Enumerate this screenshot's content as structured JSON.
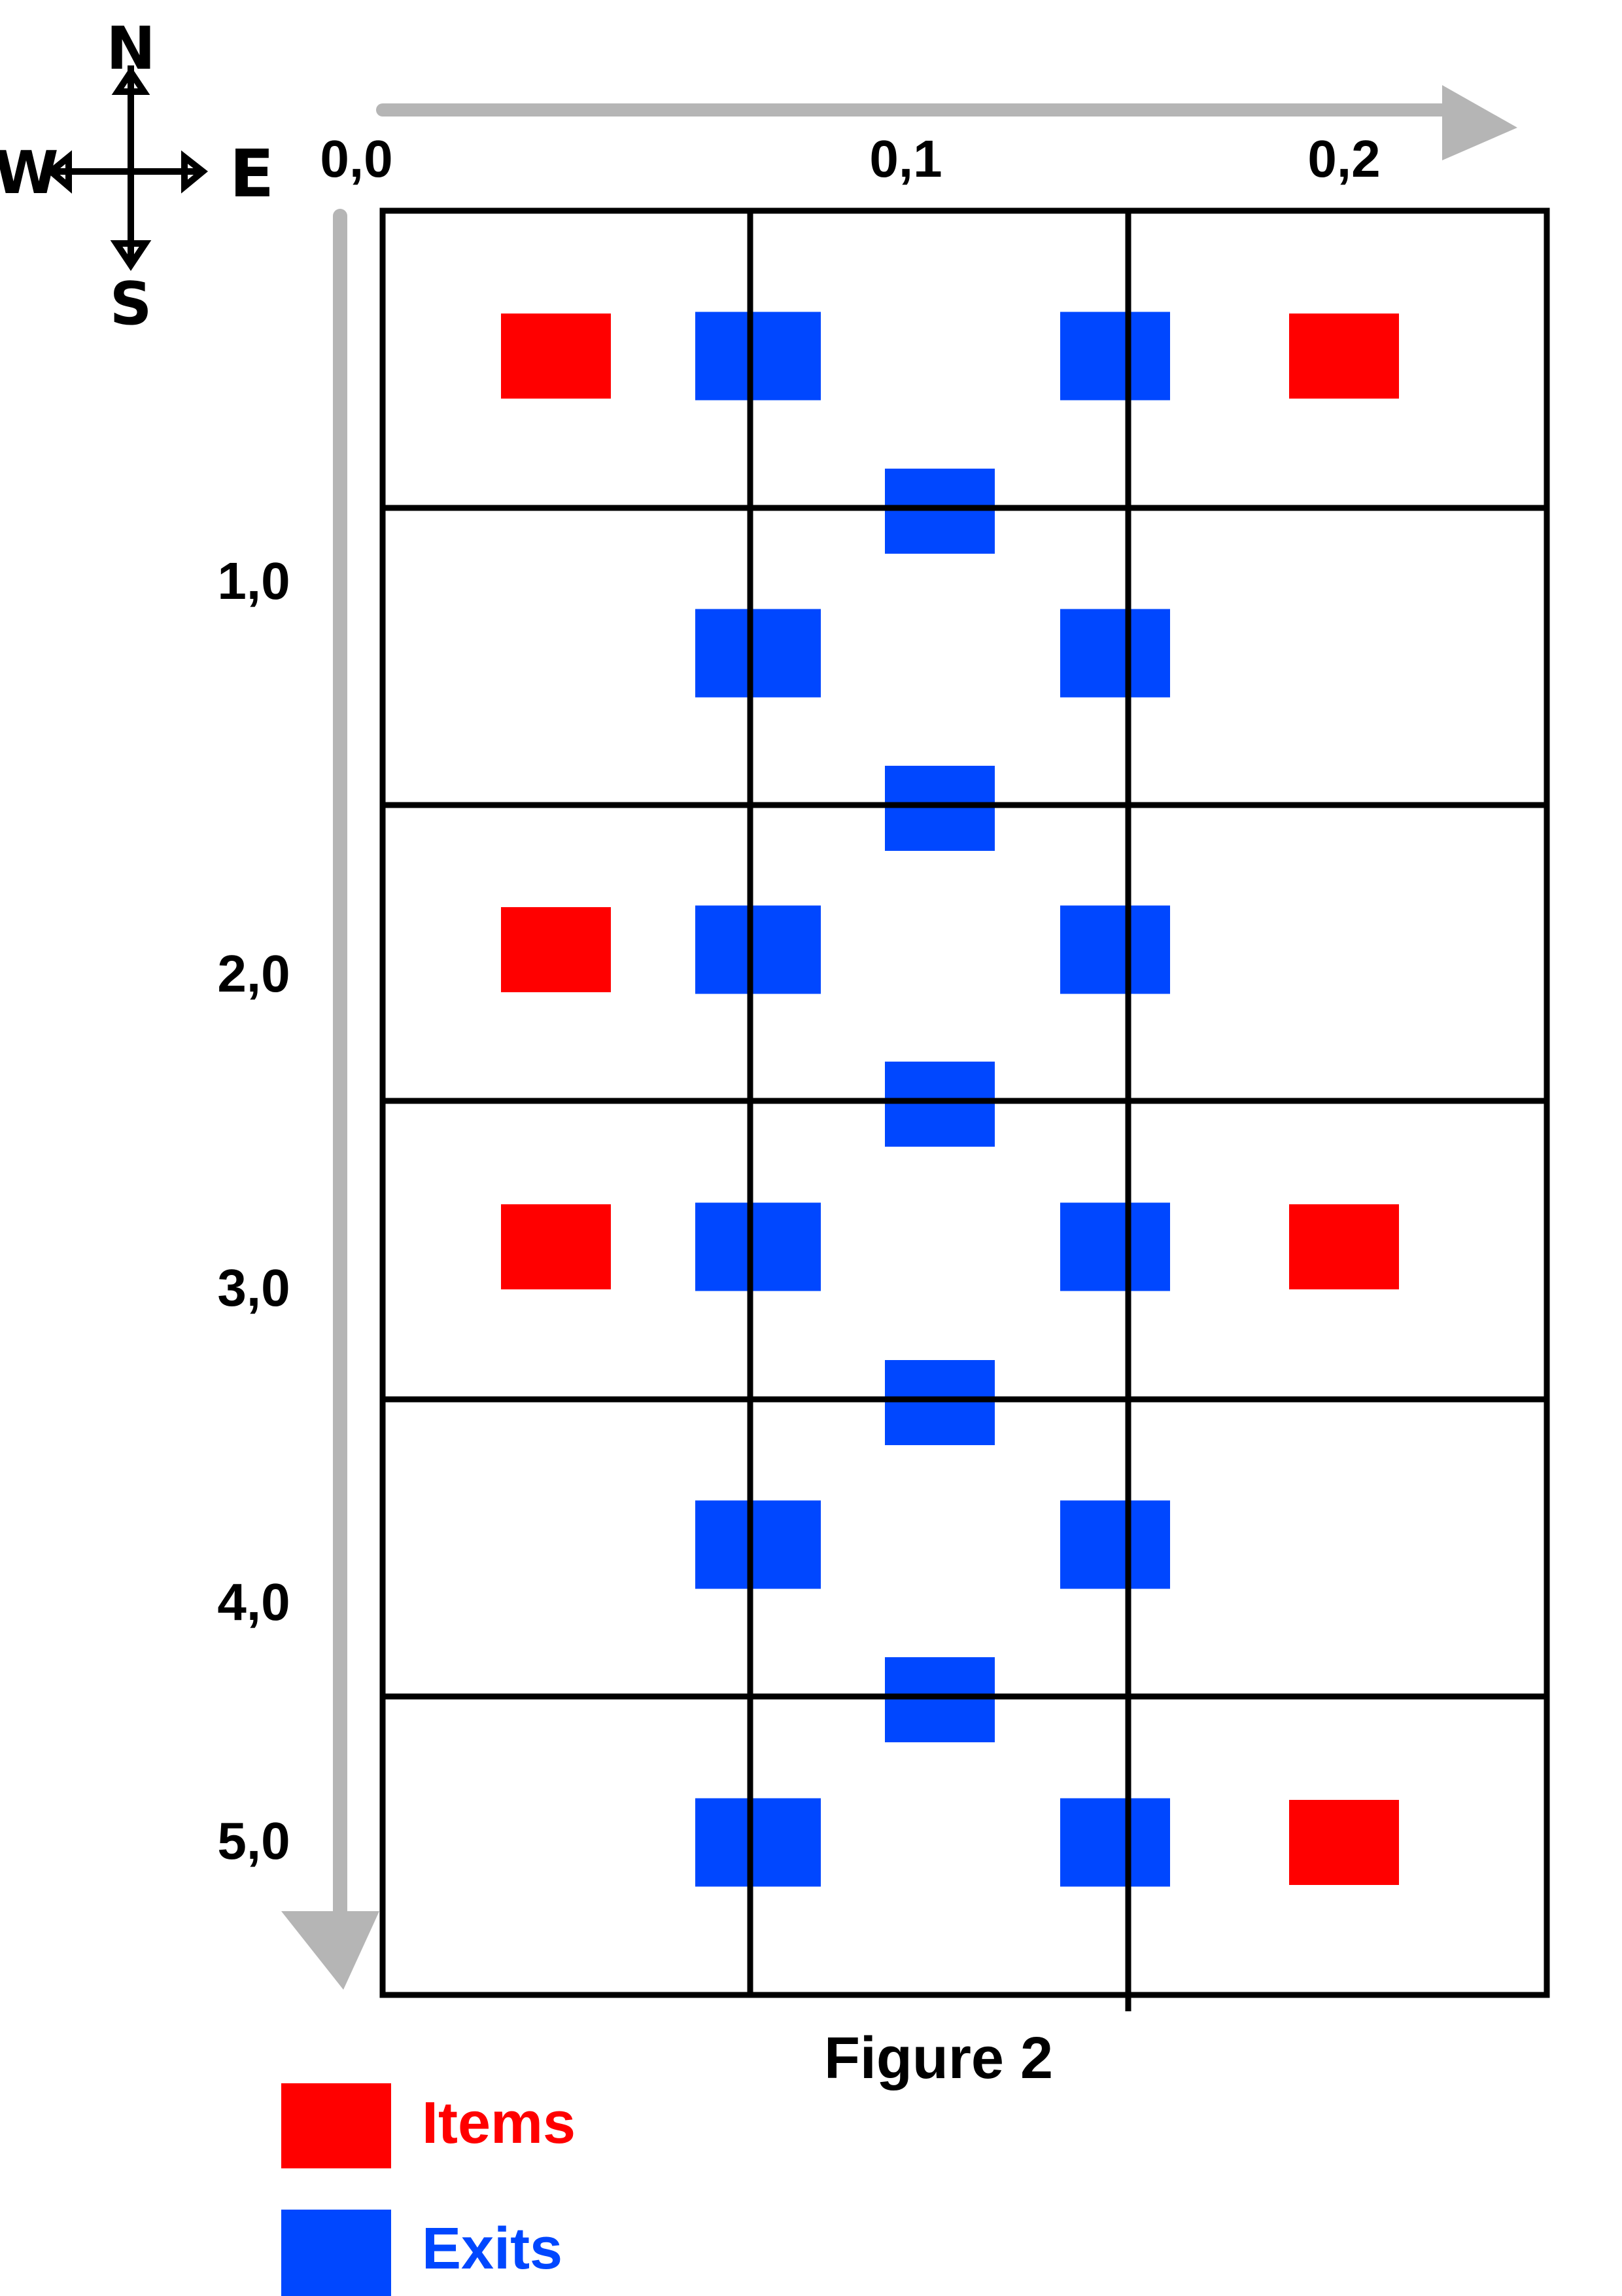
{
  "compass": {
    "north": "N",
    "south": "S",
    "east": "E",
    "west": "W"
  },
  "column_labels": [
    "0,0",
    "0,1",
    "0,2"
  ],
  "row_labels": [
    "1,0",
    "2,0",
    "3,0",
    "4,0",
    "5,0"
  ],
  "caption": "Figure 2",
  "legend": {
    "items": {
      "label": "Items",
      "color": "#ff0000"
    },
    "exits": {
      "label": "Exits",
      "color": "#0047ff"
    }
  },
  "grid": {
    "rows": 6,
    "columns": 3
  },
  "cells_with_items": [
    [
      0,
      0
    ],
    [
      0,
      2
    ],
    [
      2,
      0
    ],
    [
      3,
      0
    ],
    [
      3,
      2
    ],
    [
      5,
      2
    ]
  ],
  "east_west_exits": [
    [
      0,
      0
    ],
    [
      0,
      1
    ],
    [
      1,
      0
    ],
    [
      1,
      1
    ],
    [
      2,
      0
    ],
    [
      2,
      1
    ],
    [
      3,
      0
    ],
    [
      3,
      1
    ],
    [
      4,
      0
    ],
    [
      4,
      1
    ],
    [
      5,
      0
    ],
    [
      5,
      1
    ]
  ],
  "north_south_exits_col1": [
    [
      0,
      1
    ],
    [
      1,
      2
    ],
    [
      2,
      3
    ],
    [
      3,
      4
    ],
    [
      4,
      5
    ]
  ],
  "colors": {
    "grid": "#000000",
    "axis_arrow": "#b5b5b5"
  }
}
